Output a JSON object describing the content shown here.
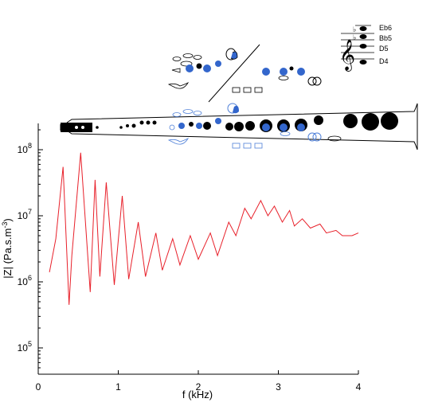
{
  "chart_data": {
    "type": "line",
    "xlabel": "f (kHz)",
    "ylabel_main": "|Z| (Pa.s.m",
    "ylabel_sup": "-3",
    "ylabel_tail": ")",
    "y_scale": "log",
    "xlim": [
      0,
      4
    ],
    "ylim": [
      40000,
      250000000
    ],
    "x_ticks": [
      0,
      1,
      2,
      3,
      4
    ],
    "x_tick_labels": [
      "0",
      "1",
      "2",
      "3",
      "4"
    ],
    "y_ticks": [
      100000,
      1000000,
      10000000,
      100000000
    ],
    "y_tick_labels": [
      {
        "base": "10",
        "exp": "5"
      },
      {
        "base": "10",
        "exp": "6"
      },
      {
        "base": "10",
        "exp": "7"
      },
      {
        "base": "10",
        "exp": "8"
      }
    ],
    "grid": false,
    "line_color": "#e8202a",
    "series": [
      {
        "values_x": [
          0.14,
          0.22,
          0.31,
          0.385,
          0.42,
          0.53,
          0.65,
          0.71,
          0.77,
          0.85,
          0.95,
          1.05,
          1.13,
          1.25,
          1.34,
          1.47,
          1.55,
          1.68,
          1.77,
          1.9,
          2.0,
          2.15,
          2.24,
          2.38,
          2.47,
          2.58,
          2.66,
          2.78,
          2.87,
          2.95,
          3.05,
          3.14,
          3.2,
          3.3,
          3.4,
          3.52,
          3.6,
          3.72,
          3.8,
          3.92,
          4.0
        ],
        "values_y": [
          1400000,
          4500000,
          55000000,
          450000,
          2500000,
          90000000,
          700000,
          35000000,
          1200000,
          32000000,
          900000,
          20000000,
          1100000,
          8000000,
          1200000,
          5500000,
          1500000,
          4500000,
          1800000,
          5000000,
          2200000,
          5500000,
          2500000,
          8000000,
          5000000,
          13000000,
          9000000,
          17000000,
          10000000,
          14000000,
          8000000,
          12000000,
          7000000,
          9000000,
          6500000,
          7500000,
          5500000,
          6000000,
          5000000,
          5000000,
          5500000
        ]
      }
    ]
  },
  "staff": {
    "notes": [
      "Eb6",
      "Bb5",
      "D5",
      "D4"
    ],
    "clef": "𝄞"
  },
  "colors": {
    "keys_open": "#3366cc",
    "keys_closed": "#000000",
    "keys_outline": "#4f80d8",
    "axis": "#000000"
  }
}
